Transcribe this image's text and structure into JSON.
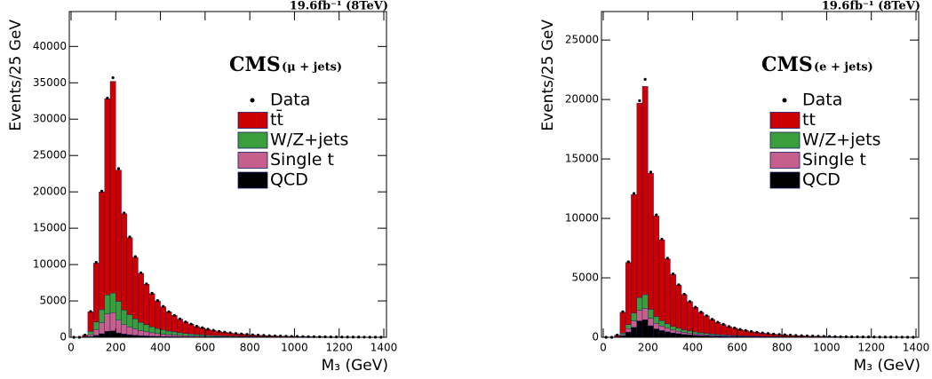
{
  "chart_data": [
    {
      "type": "histogram",
      "lumi": "19.6fb⁻¹ (8TeV)",
      "cms_label": "CMS",
      "channel": "(μ + jets)",
      "y_label": "Events/25 GeV",
      "x_label": "M₃ (GeV)",
      "bins": [
        0,
        25,
        50,
        75,
        100,
        125,
        150,
        175,
        200,
        225,
        250,
        275,
        300,
        325,
        350,
        375,
        400,
        425,
        450,
        475,
        500,
        525,
        550,
        575,
        600,
        625,
        650,
        675,
        700,
        725,
        750,
        775,
        800,
        825,
        850,
        875,
        900,
        925,
        950,
        975,
        1000,
        1025,
        1050,
        1075,
        1100,
        1125,
        1150,
        1175,
        1200,
        1225,
        1250,
        1275,
        1300,
        1325,
        1350,
        1375,
        1400
      ],
      "xlim": [
        0,
        1400
      ],
      "xticks": [
        0,
        200,
        400,
        600,
        800,
        1000,
        1200,
        1400
      ],
      "ylim": [
        0,
        44800
      ],
      "yticks": [
        0,
        5000,
        10000,
        15000,
        20000,
        25000,
        30000,
        35000,
        40000
      ],
      "data": {
        "name": "Data",
        "color": "#000000",
        "values": [
          0,
          0,
          310,
          3550,
          10300,
          20100,
          32900,
          35700,
          23200,
          17100,
          13800,
          11100,
          8850,
          7350,
          6050,
          5050,
          4250,
          3520,
          3010,
          2520,
          2110,
          1810,
          1510,
          1310,
          1110,
          960,
          810,
          710,
          610,
          525,
          455,
          395,
          345,
          295,
          255,
          222,
          192,
          167,
          147,
          127,
          112,
          97,
          86,
          76,
          66,
          58,
          51,
          45,
          40,
          35,
          31,
          27,
          24,
          21,
          19,
          17
        ]
      },
      "series": [
        {
          "name": "tt̄",
          "color": "#cc0000",
          "values": [
            0,
            0,
            230,
            2700,
            8100,
            16200,
            26980,
            29120,
            18050,
            13250,
            10590,
            8460,
            6740,
            5570,
            4560,
            3790,
            3170,
            2640,
            2250,
            1875,
            1575,
            1343,
            1115,
            966,
            816,
            707,
            592,
            518,
            443,
            384,
            331,
            287,
            250,
            213,
            183,
            161,
            139,
            121,
            106,
            91,
            81,
            70,
            62,
            55,
            47,
            42,
            37,
            33,
            28,
            24,
            22,
            19,
            16,
            15,
            14,
            12
          ]
        },
        {
          "name": "W/Z+jets",
          "color": "#3a9e3a",
          "values": [
            0,
            0,
            40,
            450,
            1080,
            1800,
            2600,
            2700,
            2600,
            2000,
            1700,
            1400,
            1150,
            980,
            820,
            700,
            600,
            500,
            440,
            370,
            310,
            270,
            230,
            200,
            170,
            145,
            125,
            110,
            95,
            82,
            72,
            63,
            55,
            47,
            41,
            36,
            31,
            27,
            24,
            21,
            18,
            16,
            14,
            12,
            11,
            10,
            8,
            7,
            7,
            6,
            5,
            4,
            4,
            3,
            3,
            3
          ]
        },
        {
          "name": "Single t",
          "color": "#c65f8a",
          "values": [
            0,
            0,
            20,
            260,
            760,
            1500,
            2400,
            2500,
            1750,
            1300,
            1050,
            850,
            680,
            560,
            460,
            380,
            320,
            270,
            230,
            190,
            160,
            140,
            115,
            100,
            85,
            73,
            62,
            54,
            46,
            40,
            35,
            30,
            26,
            22,
            19,
            17,
            15,
            13,
            11,
            10,
            8,
            7,
            7,
            6,
            5,
            4,
            4,
            3,
            3,
            3,
            2,
            2,
            2,
            2,
            1,
            1
          ]
        },
        {
          "name": "QCD",
          "color": "#000000",
          "values": [
            0,
            0,
            10,
            90,
            260,
            500,
            820,
            880,
            600,
            450,
            360,
            290,
            230,
            190,
            160,
            130,
            110,
            90,
            80,
            65,
            55,
            47,
            40,
            34,
            29,
            25,
            21,
            18,
            16,
            14,
            12,
            10,
            9,
            8,
            7,
            6,
            5,
            4,
            4,
            3,
            3,
            2,
            2,
            2,
            2,
            1,
            1,
            1,
            1,
            1,
            1,
            1,
            1,
            0,
            0,
            0
          ]
        }
      ]
    },
    {
      "type": "histogram",
      "lumi": "19.6fb⁻¹ (8TeV)",
      "cms_label": "CMS",
      "channel": "(e + jets)",
      "y_label": "Events/25 GeV",
      "x_label": "M₃ (GeV)",
      "bins": [
        0,
        25,
        50,
        75,
        100,
        125,
        150,
        175,
        200,
        225,
        250,
        275,
        300,
        325,
        350,
        375,
        400,
        425,
        450,
        475,
        500,
        525,
        550,
        575,
        600,
        625,
        650,
        675,
        700,
        725,
        750,
        775,
        800,
        825,
        850,
        875,
        900,
        925,
        950,
        975,
        1000,
        1025,
        1050,
        1075,
        1100,
        1125,
        1150,
        1175,
        1200,
        1225,
        1250,
        1275,
        1300,
        1325,
        1350,
        1375,
        1400
      ],
      "xlim": [
        0,
        1400
      ],
      "xticks": [
        0,
        200,
        400,
        600,
        800,
        1000,
        1200,
        1400
      ],
      "ylim": [
        0,
        27400
      ],
      "yticks": [
        0,
        5000,
        10000,
        15000,
        20000,
        25000
      ],
      "data": {
        "name": "Data",
        "color": "#000000",
        "values": [
          0,
          0,
          185,
          2150,
          6350,
          12100,
          19900,
          21700,
          13900,
          10300,
          8250,
          6650,
          5330,
          4420,
          3620,
          3010,
          2530,
          2110,
          1810,
          1510,
          1265,
          1085,
          905,
          785,
          665,
          575,
          485,
          425,
          365,
          315,
          272,
          236,
          206,
          176,
          152,
          134,
          116,
          100,
          88,
          76,
          67,
          58,
          52,
          46,
          40,
          35,
          31,
          27,
          24,
          21,
          19,
          17,
          15,
          13,
          12,
          11
        ]
      },
      "series": [
        {
          "name": "tt",
          "color": "#cc0000",
          "values": [
            0,
            0,
            149,
            1740,
            5230,
            9960,
            16350,
            17510,
            11450,
            8470,
            6800,
            5460,
            4380,
            3630,
            2970,
            2465,
            2066,
            1718,
            1471,
            1224,
            1027,
            879,
            732,
            634,
            536,
            462,
            388,
            340,
            291,
            252,
            218,
            188,
            165,
            140,
            120,
            106,
            92,
            80,
            70,
            61,
            53,
            45,
            41,
            36,
            31,
            27,
            25,
            21,
            18,
            16,
            15,
            13,
            11,
            9,
            9,
            8
          ]
        },
        {
          "name": "W/Z+jets",
          "color": "#3a9e3a",
          "values": [
            0,
            0,
            10,
            115,
            350,
            660,
            1080,
            1160,
            760,
            560,
            460,
            380,
            310,
            260,
            220,
            190,
            165,
            140,
            122,
            103,
            88,
            76,
            64,
            56,
            48,
            42,
            36,
            32,
            28,
            24,
            21,
            19,
            16,
            14,
            12,
            11,
            9,
            8,
            7,
            6,
            5,
            5,
            4,
            4,
            3,
            3,
            2,
            2,
            2,
            2,
            1,
            1,
            1,
            1,
            1,
            1
          ]
        },
        {
          "name": "Single t",
          "color": "#c65f8a",
          "values": [
            0,
            0,
            8,
            95,
            280,
            540,
            890,
            950,
            620,
            460,
            370,
            300,
            240,
            200,
            160,
            135,
            113,
            95,
            81,
            68,
            57,
            49,
            41,
            35,
            30,
            26,
            22,
            19,
            16,
            14,
            12,
            11,
            9,
            8,
            7,
            6,
            5,
            4,
            4,
            3,
            3,
            3,
            2,
            2,
            2,
            2,
            1,
            1,
            1,
            1,
            1,
            1,
            1,
            1,
            0,
            0
          ]
        },
        {
          "name": "QCD",
          "color": "#000000",
          "values": [
            0,
            0,
            13,
            150,
            440,
            840,
            1380,
            1480,
            970,
            710,
            570,
            460,
            370,
            310,
            250,
            210,
            176,
            147,
            126,
            105,
            88,
            76,
            63,
            55,
            46,
            40,
            34,
            29,
            25,
            22,
            19,
            16,
            14,
            12,
            11,
            9,
            8,
            7,
            6,
            5,
            5,
            4,
            4,
            3,
            3,
            2,
            2,
            2,
            2,
            1,
            1,
            1,
            1,
            1,
            1,
            1
          ]
        }
      ]
    }
  ]
}
